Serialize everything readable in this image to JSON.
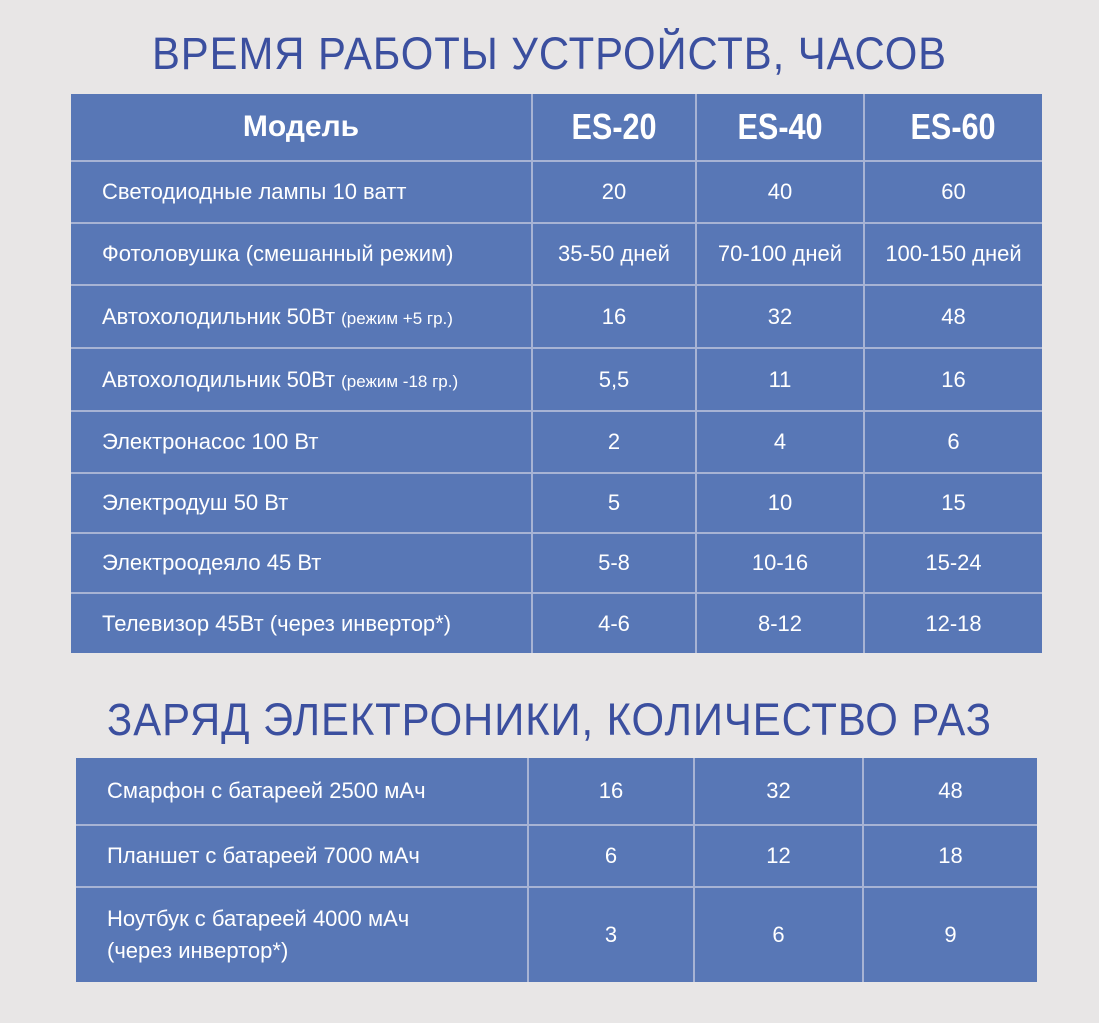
{
  "tables": [
    {
      "title": "ВРЕМЯ РАБОТЫ УСТРОЙСТВ, ЧАСОВ",
      "header": [
        "Модель",
        "ES-20",
        "ES-40",
        "ES-60"
      ],
      "rows": [
        {
          "label": "Светодиодные лампы 10 ватт",
          "values": [
            20,
            40,
            60
          ]
        },
        {
          "label": "Фотоловушка (смешанный режим)",
          "values": [
            "35-50 дней",
            "70-100 дней",
            "100-150 дней"
          ]
        },
        {
          "label": "Автохолодильник 50Вт",
          "note": "(режим +5 гр.)",
          "values": [
            16,
            32,
            48
          ]
        },
        {
          "label": "Автохолодильник 50Вт",
          "note": "(режим -18 гр.)",
          "values": [
            "5,5",
            11,
            16
          ]
        },
        {
          "label": "Электронасос 100 Вт",
          "values": [
            2,
            4,
            6
          ]
        },
        {
          "label": "Электродуш 50 Вт",
          "values": [
            5,
            10,
            15
          ]
        },
        {
          "label": "Электроодеяло 45 Вт",
          "values": [
            "5-8",
            "10-16",
            "15-24"
          ]
        },
        {
          "label": "Телевизор 45Вт (через инвертор*)",
          "values": [
            "4-6",
            "8-12",
            "12-18"
          ]
        }
      ]
    },
    {
      "title": "ЗАРЯД ЭЛЕКТРОНИКИ, КОЛИЧЕСТВО РАЗ",
      "rows": [
        {
          "label": "Смарфон с батареей 2500 мАч",
          "values": [
            16,
            32,
            48
          ]
        },
        {
          "label": "Планшет с батареей 7000 мАч",
          "values": [
            6,
            12,
            18
          ]
        },
        {
          "label": "Ноутбук с батареей 4000 мАч",
          "note": "(через инвертор*)",
          "values": [
            3,
            6,
            9
          ]
        }
      ]
    }
  ]
}
